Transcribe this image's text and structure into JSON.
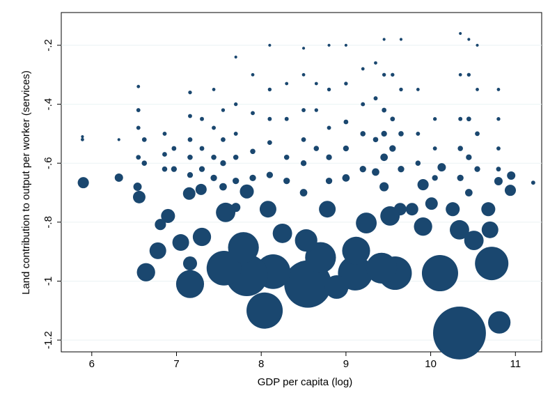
{
  "chart_data": {
    "type": "scatter",
    "x_label": "GDP per capita (log)",
    "y_label": "Land contribution to output per worker (services)",
    "color": "#1a476f",
    "grid": true,
    "xlim": [
      5.64,
      11.31
    ],
    "ylim": [
      -1.24,
      -0.089
    ],
    "xticks": [
      6,
      7,
      8,
      9,
      10,
      11
    ],
    "yticks": [
      -1.2,
      -1,
      {
        "value": -0.8,
        "label": "-.8"
      },
      {
        "value": -0.6,
        "label": "-.6"
      },
      {
        "value": -0.4,
        "label": "-.4"
      },
      {
        "value": -0.2,
        "label": "-.2"
      }
    ],
    "x": [
      10.34,
      10.81,
      10.11,
      10.72,
      8.04,
      8.55,
      8.14,
      7.83,
      9.58,
      9.11,
      8.89,
      7.16,
      6.64,
      7.56,
      7.79,
      8.7,
      9.12,
      9.42,
      6.78,
      7.05,
      7.3,
      7.16,
      6.9,
      7.58,
      8.25,
      8.53,
      9.24,
      9.52,
      9.91,
      10.34,
      10.51,
      10.7,
      10.68,
      10.26,
      10.01,
      9.78,
      9.64,
      8.78,
      8.08,
      7.83,
      7.15,
      7.29,
      6.81,
      6.56,
      5.9,
      6.32,
      6.54,
      10.8,
      10.94,
      10.95,
      11.21,
      9.91,
      10.13,
      5.89,
      5.89,
      6.32,
      6.55,
      6.55,
      6.55,
      6.55,
      6.62,
      6.62,
      6.86,
      6.86,
      6.86,
      6.97,
      6.97,
      7.16,
      7.16,
      7.16,
      7.16,
      7.16,
      7.3,
      7.3,
      7.3,
      7.44,
      7.44,
      7.44,
      7.44,
      7.55,
      7.55,
      7.55,
      7.55,
      7.7,
      7.7,
      7.7,
      7.7,
      7.7,
      7.7,
      7.9,
      7.9,
      7.9,
      7.9,
      8.1,
      8.1,
      8.1,
      8.1,
      8.1,
      8.3,
      8.3,
      8.3,
      8.3,
      8.5,
      8.5,
      8.5,
      8.5,
      8.5,
      8.5,
      8.65,
      8.65,
      8.65,
      8.8,
      8.8,
      8.8,
      8.8,
      8.8,
      9.0,
      9.0,
      9.0,
      9.0,
      9.0,
      9.2,
      9.2,
      9.2,
      9.2,
      9.35,
      9.35,
      9.35,
      9.35,
      9.45,
      9.45,
      9.45,
      9.45,
      9.45,
      9.45,
      9.55,
      9.55,
      9.55,
      9.65,
      9.65,
      9.65,
      9.65,
      9.85,
      9.85,
      9.85,
      10.05,
      10.05,
      10.05,
      10.35,
      10.35,
      10.35,
      10.35,
      10.35,
      10.45,
      10.45,
      10.45,
      10.45,
      10.45,
      10.55,
      10.55,
      10.55,
      10.55,
      10.8,
      10.8,
      10.8,
      10.8
    ],
    "values": [
      -1.176,
      -1.14,
      -0.973,
      -0.94,
      -1.1,
      -1.01,
      -0.968,
      -0.98,
      -0.973,
      -0.973,
      -1.02,
      -1.01,
      -0.97,
      -0.956,
      -0.886,
      -0.92,
      -0.897,
      -0.956,
      -0.897,
      -0.869,
      -0.85,
      -0.94,
      -0.779,
      -0.767,
      -0.838,
      -0.862,
      -0.803,
      -0.779,
      -0.815,
      -0.826,
      -0.862,
      -0.826,
      -0.756,
      -0.756,
      -0.737,
      -0.756,
      -0.756,
      -0.756,
      -0.756,
      -0.696,
      -0.703,
      -0.689,
      -0.808,
      -0.715,
      -0.666,
      -0.649,
      -0.68,
      -0.661,
      -0.692,
      -0.642,
      -0.666,
      -0.673,
      -0.614,
      -0.52,
      -0.51,
      -0.52,
      -0.34,
      -0.42,
      -0.48,
      -0.58,
      -0.52,
      -0.6,
      -0.5,
      -0.57,
      -0.62,
      -0.55,
      -0.62,
      -0.36,
      -0.44,
      -0.52,
      -0.58,
      -0.64,
      -0.45,
      -0.55,
      -0.62,
      -0.35,
      -0.48,
      -0.58,
      -0.65,
      -0.42,
      -0.52,
      -0.6,
      -0.68,
      -0.24,
      -0.4,
      -0.5,
      -0.58,
      -0.66,
      -0.75,
      -0.3,
      -0.43,
      -0.56,
      -0.65,
      -0.2,
      -0.35,
      -0.45,
      -0.53,
      -0.64,
      -0.33,
      -0.45,
      -0.58,
      -0.66,
      -0.21,
      -0.3,
      -0.42,
      -0.52,
      -0.6,
      -0.7,
      -0.33,
      -0.42,
      -0.55,
      -0.2,
      -0.35,
      -0.48,
      -0.58,
      -0.66,
      -0.2,
      -0.33,
      -0.46,
      -0.55,
      -0.65,
      -0.28,
      -0.4,
      -0.5,
      -0.62,
      -0.26,
      -0.38,
      -0.52,
      -0.63,
      -0.18,
      -0.3,
      -0.42,
      -0.5,
      -0.58,
      -0.68,
      -0.3,
      -0.45,
      -0.55,
      -0.18,
      -0.35,
      -0.5,
      -0.62,
      -0.35,
      -0.5,
      -0.6,
      -0.45,
      -0.55,
      -0.65,
      -0.16,
      -0.3,
      -0.45,
      -0.55,
      -0.65,
      -0.18,
      -0.3,
      -0.45,
      -0.58,
      -0.7,
      -0.2,
      -0.35,
      -0.5,
      -0.62,
      -0.35,
      -0.45,
      -0.55,
      -0.62
    ],
    "sizes": [
      1000,
      180,
      470,
      400,
      470,
      800,
      430,
      625,
      400,
      430,
      200,
      280,
      120,
      430,
      340,
      340,
      280,
      340,
      100,
      100,
      120,
      70,
      70,
      135,
      135,
      180,
      155,
      135,
      120,
      135,
      135,
      100,
      70,
      70,
      56,
      56,
      56,
      100,
      100,
      70,
      56,
      45,
      45,
      56,
      45,
      25,
      25,
      25,
      45,
      25,
      6,
      45,
      25,
      4,
      3,
      3,
      4,
      6,
      6,
      8,
      8,
      10,
      6,
      8,
      10,
      8,
      12,
      5,
      6,
      8,
      10,
      12,
      6,
      8,
      12,
      4,
      6,
      10,
      15,
      5,
      8,
      12,
      20,
      3,
      5,
      6,
      10,
      15,
      30,
      4,
      6,
      10,
      15,
      3,
      5,
      6,
      8,
      15,
      4,
      6,
      10,
      15,
      3,
      4,
      6,
      8,
      12,
      20,
      4,
      5,
      10,
      3,
      5,
      6,
      12,
      15,
      3,
      5,
      8,
      12,
      20,
      4,
      6,
      10,
      15,
      4,
      6,
      10,
      20,
      3,
      5,
      8,
      12,
      20,
      30,
      5,
      8,
      15,
      3,
      5,
      10,
      15,
      4,
      6,
      10,
      5,
      6,
      12,
      3,
      4,
      6,
      10,
      15,
      3,
      5,
      8,
      12,
      20,
      3,
      4,
      8,
      12,
      4,
      5,
      6,
      8
    ]
  }
}
